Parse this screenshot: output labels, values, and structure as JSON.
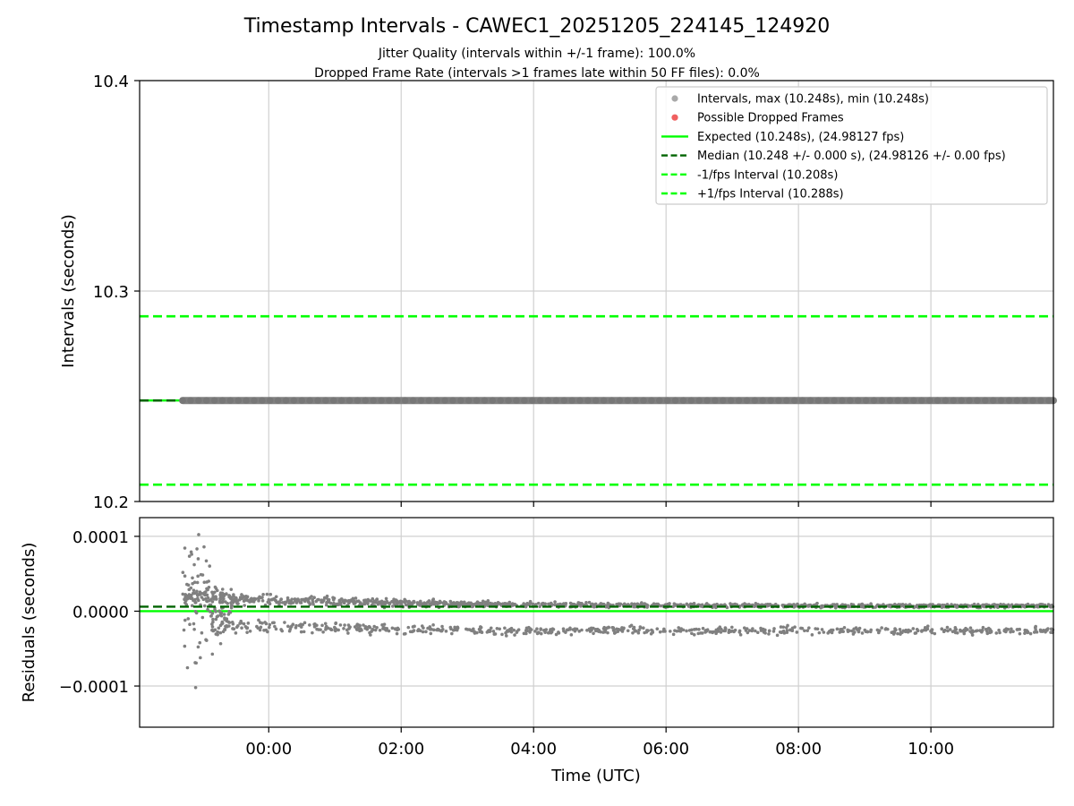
{
  "chart_data": [
    {
      "type": "scatter",
      "title": "Timestamp Intervals - CAWEC1_20251205_224145_124920",
      "subtitle_1": "Jitter Quality (intervals within +/-1 frame): 100.0%",
      "subtitle_2": "Dropped Frame Rate (intervals >1 frames late within 50 FF files): 0.0%",
      "ylabel": "Intervals (seconds)",
      "xlim_hours": [
        -1.95,
        11.85
      ],
      "ylim": [
        10.2,
        10.4
      ],
      "yticks": [
        {
          "value": 10.2,
          "label": "10.2"
        },
        {
          "value": 10.3,
          "label": "10.3"
        },
        {
          "value": 10.4,
          "label": "10.4"
        }
      ],
      "grid": true,
      "legend_position": "top-right",
      "intervals": {
        "x_start_hours": -1.3,
        "x_end_hours": 11.85,
        "value": 10.248
      },
      "lines": {
        "expected": 10.248,
        "median": 10.248,
        "minus_1fps": 10.208,
        "plus_1fps": 10.288
      },
      "colors": {
        "intervals": "#808080",
        "dropped": "#ff4444",
        "expected": "#00ff00",
        "median": "#006400",
        "bounds": "#00ff00"
      },
      "legend": [
        {
          "label": "Intervals, max (10.248s), min (10.248s)",
          "kind": "dot",
          "color": "#a9a9a9"
        },
        {
          "label": "Possible Dropped Frames",
          "kind": "dot",
          "color": "#f06060"
        },
        {
          "label": "Expected (10.248s), (24.98127 fps)",
          "kind": "solid",
          "color": "#00ff00"
        },
        {
          "label": "Median (10.248 +/- 0.000 s), (24.98126 +/- 0.00 fps)",
          "kind": "dashed",
          "color": "#006400"
        },
        {
          "label": "-1/fps Interval (10.208s)",
          "kind": "dashed",
          "color": "#00ff00"
        },
        {
          "label": "+1/fps Interval (10.288s)",
          "kind": "dashed",
          "color": "#00ff00"
        }
      ]
    },
    {
      "type": "scatter",
      "ylabel": "Residuals (seconds)",
      "xlabel": "Time (UTC)",
      "xlim_hours": [
        -1.95,
        11.85
      ],
      "ylim": [
        -0.000155,
        0.000125
      ],
      "yticks": [
        {
          "value": 0.0001,
          "label": "0.0001"
        },
        {
          "value": 0.0,
          "label": "0.0000"
        },
        {
          "value": -0.0001,
          "label": "−0.0001"
        }
      ],
      "xticks": [
        {
          "value": 0,
          "label": "00:00"
        },
        {
          "value": 2,
          "label": "02:00"
        },
        {
          "value": 4,
          "label": "04:00"
        },
        {
          "value": 6,
          "label": "06:00"
        },
        {
          "value": 8,
          "label": "08:00"
        },
        {
          "value": 10,
          "label": "10:00"
        }
      ],
      "grid": true,
      "expected_residual": 0.0,
      "median_residual": 6e-06,
      "colors": {
        "points": "#808080",
        "expected": "#00ff00",
        "median": "#006400"
      },
      "residual_bands": [
        {
          "name": "upper-band",
          "x_start_hours": -1.3,
          "x_end_hours": 11.85,
          "center_start": 2e-05,
          "center_end": 7e-06,
          "spread": 5e-06
        },
        {
          "name": "lower-band",
          "x_start_hours": -0.85,
          "x_end_hours": 11.85,
          "center_start": -2e-05,
          "center_end": -2.6e-05,
          "spread": 4e-06
        },
        {
          "name": "early-scatter",
          "x_start_hours": -1.3,
          "x_end_hours": -0.85,
          "center_start": 0.0,
          "center_end": 0.0,
          "spread": 0.00013
        }
      ]
    }
  ]
}
